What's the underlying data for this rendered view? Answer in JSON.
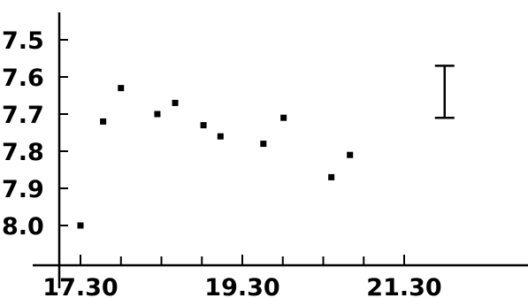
{
  "chart_data": {
    "type": "scatter",
    "title": "",
    "xlabel": "",
    "ylabel": "",
    "x_ticks": [
      {
        "value": 17.5,
        "label": "17.30"
      },
      {
        "value": 19.5,
        "label": "19.30"
      },
      {
        "value": 21.5,
        "label": "21.30"
      }
    ],
    "y_ticks": [
      {
        "value": 7.5,
        "label": "7.5"
      },
      {
        "value": 7.6,
        "label": "7.6"
      },
      {
        "value": 7.7,
        "label": "7.7"
      },
      {
        "value": 7.8,
        "label": "7.8"
      },
      {
        "value": 7.9,
        "label": "7.9"
      },
      {
        "value": 8.0,
        "label": "8.0"
      }
    ],
    "xlim": [
      17.4,
      22.2
    ],
    "ylim": [
      8.11,
      7.5
    ],
    "y_inverted": true,
    "grid": false,
    "points": [
      {
        "x": 17.5,
        "y": 8.0
      },
      {
        "x": 17.78,
        "y": 7.72
      },
      {
        "x": 18.0,
        "y": 7.63
      },
      {
        "x": 18.45,
        "y": 7.7
      },
      {
        "x": 18.67,
        "y": 7.67
      },
      {
        "x": 19.02,
        "y": 7.73
      },
      {
        "x": 19.23,
        "y": 7.76
      },
      {
        "x": 19.76,
        "y": 7.78
      },
      {
        "x": 20.01,
        "y": 7.71
      },
      {
        "x": 20.6,
        "y": 7.87
      },
      {
        "x": 20.83,
        "y": 7.81
      }
    ],
    "error_bar": {
      "x": 22.0,
      "y_low": 7.57,
      "y_high": 7.71
    }
  }
}
